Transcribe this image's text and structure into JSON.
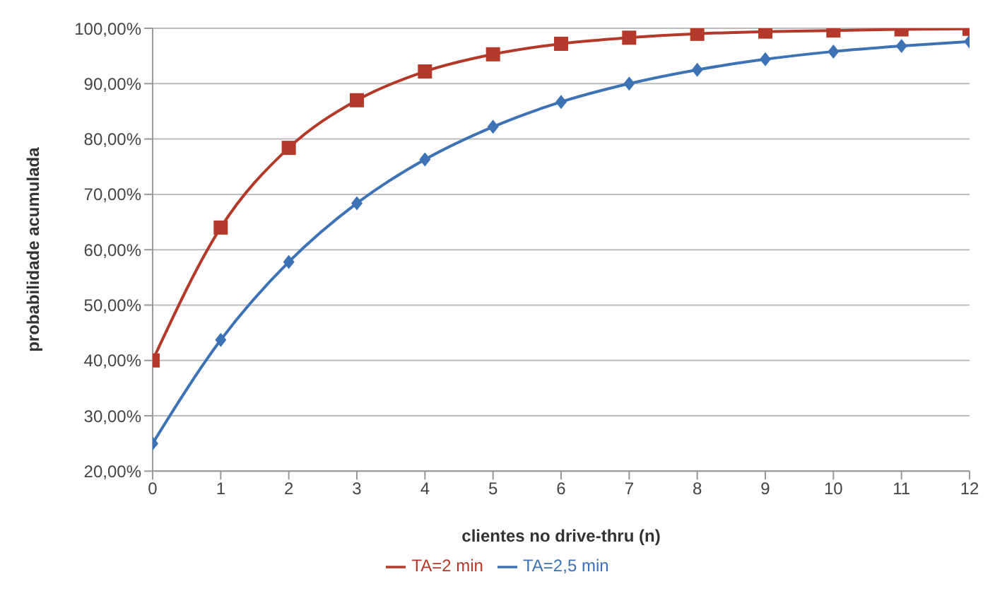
{
  "chart_data": {
    "type": "line",
    "xlabel": "clientes no drive-thru (n)",
    "ylabel": "probabilidade acumulada",
    "x": [
      0,
      1,
      2,
      3,
      4,
      5,
      6,
      7,
      8,
      9,
      10,
      11,
      12
    ],
    "series": [
      {
        "name": "TA=2,5 min",
        "color": "#3d72b4",
        "marker": "diamond",
        "values": [
          25,
          43.7,
          57.8,
          68.4,
          76.3,
          82.2,
          86.7,
          90,
          92.5,
          94.4,
          95.8,
          96.8,
          97.6
        ]
      },
      {
        "name": "TA=2 min",
        "color": "#b33a2b",
        "marker": "square",
        "values": [
          40,
          64,
          78.4,
          87,
          92.2,
          95.3,
          97.2,
          98.3,
          99,
          99.4,
          99.6,
          99.8,
          99.9
        ]
      }
    ],
    "xlim": [
      0,
      12
    ],
    "xticks": [
      0,
      1,
      2,
      3,
      4,
      5,
      6,
      7,
      8,
      9,
      10,
      11,
      12
    ],
    "ylim": [
      20,
      100
    ],
    "yticks": [
      {
        "value": 20,
        "label": "20,00%"
      },
      {
        "value": 30,
        "label": "30,00%"
      },
      {
        "value": 40,
        "label": "40,00%"
      },
      {
        "value": 50,
        "label": "50,00%"
      },
      {
        "value": 60,
        "label": "60,00%"
      },
      {
        "value": 70,
        "label": "70,00%"
      },
      {
        "value": 80,
        "label": "80,00%"
      },
      {
        "value": 90,
        "label": "90,00%"
      },
      {
        "value": 100,
        "label": "100,00%"
      }
    ],
    "grid": "y",
    "legend": "bottom",
    "line_style": "solid"
  }
}
